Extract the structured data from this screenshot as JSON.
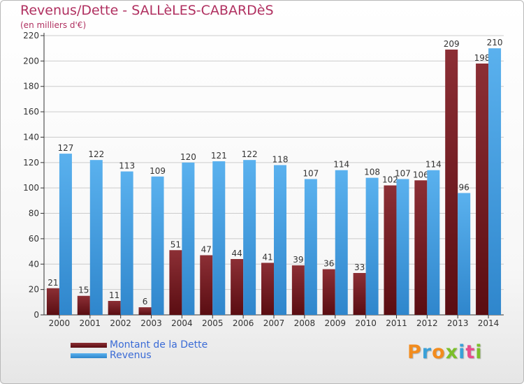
{
  "title": "Revenus/Dette - SALLèLES-CABARDèS",
  "subtitle": "(en milliers d'€)",
  "logo": "Proxiti",
  "colors": {
    "title": "#b03060",
    "dette": "#7a1f26",
    "revenus": "#4aa3e6",
    "legend_text": "#3a6bd6",
    "grid": "#cccccc"
  },
  "chart_data": {
    "type": "bar",
    "categories": [
      "2000",
      "2001",
      "2002",
      "2003",
      "2004",
      "2005",
      "2006",
      "2007",
      "2008",
      "2009",
      "2010",
      "2011",
      "2012",
      "2013",
      "2014"
    ],
    "series": [
      {
        "name": "Montant de la Dette",
        "values": [
          21,
          15,
          11,
          6,
          51,
          47,
          44,
          41,
          39,
          36,
          33,
          102,
          106,
          209,
          198
        ]
      },
      {
        "name": "Revenus",
        "values": [
          127,
          122,
          113,
          109,
          120,
          121,
          122,
          118,
          107,
          114,
          108,
          107,
          114,
          96,
          210
        ]
      }
    ],
    "ylim": [
      0,
      220
    ],
    "yticks": [
      0,
      20,
      40,
      60,
      80,
      100,
      120,
      140,
      160,
      180,
      200,
      220
    ],
    "grid": true,
    "legend_position": "bottom-left"
  }
}
